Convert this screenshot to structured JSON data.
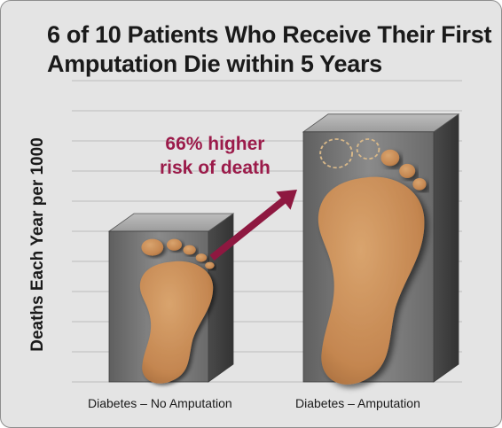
{
  "colors": {
    "background": "#e4e4e4",
    "bar_front": "#7a7a7a",
    "bar_top": "#a9a9a9",
    "bar_side": "#4e4e4e",
    "foot": "#c58a55",
    "arrow": "#8e1840",
    "annotation": "#9b1b4a"
  },
  "icons": [
    "foot-icon",
    "foot-outline-icon",
    "up-arrow-icon"
  ],
  "chart_data": {
    "type": "bar",
    "title_line1": "6 of 10 Patients Who Receive Their First",
    "title_line2": "Amputation Die within 5 Years",
    "xlabel": "",
    "ylabel": "Deaths Each Year per 1000",
    "categories": [
      "Diabetes – No Amputation",
      "Diabetes –  Amputation"
    ],
    "values": [
      100,
      166
    ],
    "value_unit": "relative (no amputation = 100)",
    "annotation_line1": "66% higher",
    "annotation_line2": "risk of death",
    "ylim": [
      0,
      200
    ],
    "grid": true,
    "y_tick_labels_shown": false,
    "style": "3d-bars"
  }
}
